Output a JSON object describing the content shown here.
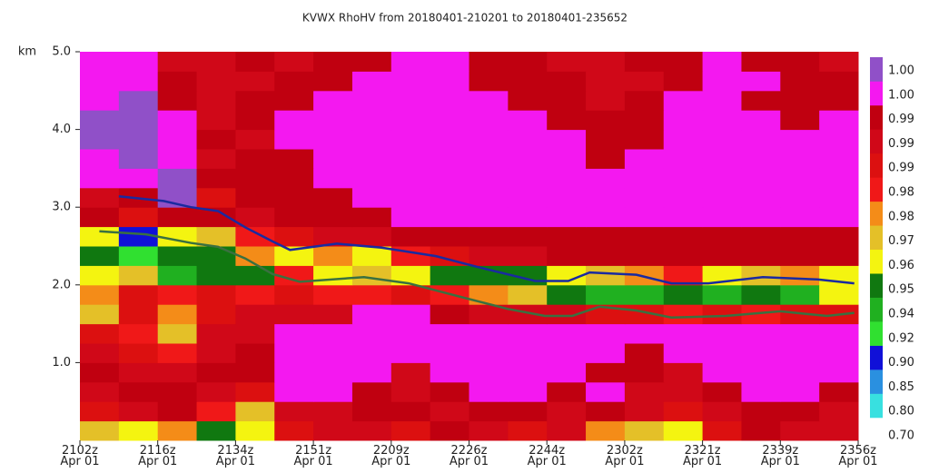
{
  "chart_data": {
    "type": "heatmap",
    "title": "KVWX RhoHV from 20180401-210201 to 20180401-235652",
    "y_unit": "km",
    "xlim": [
      0,
      40
    ],
    "ylim": [
      0,
      5
    ],
    "xticks": [
      {
        "value": 0,
        "label": "2102z\nApr 01"
      },
      {
        "value": 4,
        "label": "2116z\nApr 01"
      },
      {
        "value": 8,
        "label": "2134z\nApr 01"
      },
      {
        "value": 12,
        "label": "2151z\nApr 01"
      },
      {
        "value": 16,
        "label": "2209z\nApr 01"
      },
      {
        "value": 20,
        "label": "2226z\nApr 01"
      },
      {
        "value": 24,
        "label": "2244z\nApr 01"
      },
      {
        "value": 28,
        "label": "2302z\nApr 01"
      },
      {
        "value": 32,
        "label": "2321z\nApr 01"
      },
      {
        "value": 36,
        "label": "2339z\nApr 01"
      },
      {
        "value": 40,
        "label": "2356z\nApr 01"
      }
    ],
    "yticks": [
      {
        "value": 1,
        "label": "1.0"
      },
      {
        "value": 2,
        "label": "2.0"
      },
      {
        "value": 3,
        "label": "3.0"
      },
      {
        "value": 4,
        "label": "4.0"
      },
      {
        "value": 5,
        "label": "5.0"
      }
    ],
    "bins_x": [
      0,
      2,
      4,
      6,
      8,
      10,
      12,
      14,
      16,
      18,
      20,
      22,
      24,
      26,
      28,
      30,
      32,
      34,
      36,
      38,
      40
    ],
    "bins_y": [
      0,
      0.25,
      0.5,
      0.75,
      1,
      1.25,
      1.5,
      1.75,
      2,
      2.25,
      2.5,
      2.75,
      3,
      3.25,
      3.5,
      3.75,
      4,
      4.25,
      4.5,
      4.75,
      5
    ],
    "z": [
      [
        0.965,
        0.955,
        0.973,
        0.945,
        0.955,
        0.986,
        0.99,
        0.99,
        0.986,
        0.993,
        0.99,
        0.986,
        0.99,
        0.973,
        0.965,
        0.955,
        0.986,
        0.993,
        0.99,
        0.99
      ],
      [
        0.986,
        0.99,
        0.993,
        0.98,
        0.965,
        0.99,
        0.99,
        0.993,
        0.993,
        0.99,
        0.993,
        0.993,
        0.99,
        0.993,
        0.99,
        0.986,
        0.99,
        0.993,
        0.993,
        0.99
      ],
      [
        0.99,
        0.993,
        0.993,
        0.99,
        0.986,
        0.995,
        0.995,
        0.993,
        0.99,
        0.993,
        0.995,
        0.995,
        0.993,
        0.995,
        0.99,
        0.99,
        0.993,
        0.995,
        0.995,
        0.993
      ],
      [
        0.993,
        0.99,
        0.99,
        0.993,
        0.993,
        0.995,
        0.995,
        0.995,
        0.99,
        0.995,
        0.995,
        0.995,
        0.995,
        0.993,
        0.993,
        0.99,
        0.995,
        0.995,
        0.995,
        0.995
      ],
      [
        0.99,
        0.986,
        0.98,
        0.99,
        0.993,
        0.995,
        0.995,
        0.995,
        0.995,
        0.995,
        0.995,
        0.995,
        0.995,
        0.995,
        0.993,
        0.995,
        0.995,
        0.995,
        0.995,
        0.995
      ],
      [
        0.986,
        0.98,
        0.965,
        0.99,
        0.99,
        0.995,
        0.995,
        0.995,
        0.995,
        0.995,
        0.995,
        0.995,
        0.995,
        0.995,
        0.995,
        0.995,
        0.995,
        0.995,
        0.995,
        0.995
      ],
      [
        0.965,
        0.986,
        0.973,
        0.986,
        0.99,
        0.99,
        0.99,
        0.995,
        0.995,
        0.993,
        0.99,
        0.99,
        0.99,
        0.986,
        0.986,
        0.98,
        0.986,
        0.98,
        0.986,
        0.986
      ],
      [
        0.973,
        0.986,
        0.98,
        0.986,
        0.98,
        0.986,
        0.98,
        0.98,
        0.986,
        0.98,
        0.973,
        0.965,
        0.945,
        0.93,
        0.93,
        0.945,
        0.93,
        0.945,
        0.93,
        0.955
      ],
      [
        0.955,
        0.965,
        0.93,
        0.945,
        0.945,
        0.98,
        0.955,
        0.965,
        0.955,
        0.945,
        0.945,
        0.945,
        0.955,
        0.965,
        0.973,
        0.98,
        0.955,
        0.965,
        0.973,
        0.955
      ],
      [
        0.945,
        0.91,
        0.945,
        0.945,
        0.973,
        0.955,
        0.973,
        0.955,
        0.98,
        0.986,
        0.99,
        0.99,
        0.993,
        0.993,
        0.993,
        0.993,
        0.993,
        0.993,
        0.993,
        0.993
      ],
      [
        0.955,
        0.87,
        0.955,
        0.965,
        0.98,
        0.986,
        0.99,
        0.99,
        0.993,
        0.993,
        0.993,
        0.993,
        0.993,
        0.993,
        0.993,
        0.993,
        0.993,
        0.993,
        0.993,
        0.993
      ],
      [
        0.993,
        0.986,
        0.993,
        0.993,
        0.99,
        0.993,
        0.993,
        0.993,
        0.995,
        0.995,
        0.995,
        0.995,
        0.995,
        0.995,
        0.995,
        0.995,
        0.995,
        0.995,
        0.995,
        0.995
      ],
      [
        0.99,
        0.993,
        0.998,
        0.986,
        0.993,
        0.993,
        0.993,
        0.995,
        0.995,
        0.995,
        0.995,
        0.995,
        0.995,
        0.995,
        0.995,
        0.995,
        0.995,
        0.995,
        0.995,
        0.995
      ],
      [
        0.995,
        0.995,
        0.998,
        0.993,
        0.993,
        0.993,
        0.995,
        0.995,
        0.995,
        0.995,
        0.995,
        0.995,
        0.995,
        0.995,
        0.995,
        0.995,
        0.995,
        0.995,
        0.995,
        0.995
      ],
      [
        0.995,
        0.998,
        0.995,
        0.99,
        0.993,
        0.993,
        0.995,
        0.995,
        0.995,
        0.995,
        0.995,
        0.995,
        0.995,
        0.993,
        0.995,
        0.995,
        0.995,
        0.995,
        0.995,
        0.995
      ],
      [
        0.998,
        0.998,
        0.995,
        0.993,
        0.99,
        0.995,
        0.995,
        0.995,
        0.995,
        0.995,
        0.995,
        0.995,
        0.995,
        0.993,
        0.993,
        0.995,
        0.995,
        0.995,
        0.995,
        0.995
      ],
      [
        0.998,
        0.998,
        0.995,
        0.99,
        0.993,
        0.995,
        0.995,
        0.995,
        0.995,
        0.995,
        0.995,
        0.995,
        0.993,
        0.993,
        0.993,
        0.995,
        0.995,
        0.995,
        0.993,
        0.995
      ],
      [
        0.995,
        0.998,
        0.993,
        0.99,
        0.993,
        0.993,
        0.995,
        0.995,
        0.995,
        0.995,
        0.995,
        0.993,
        0.993,
        0.99,
        0.993,
        0.995,
        0.995,
        0.993,
        0.993,
        0.993
      ],
      [
        0.995,
        0.995,
        0.993,
        0.99,
        0.99,
        0.993,
        0.993,
        0.995,
        0.995,
        0.995,
        0.993,
        0.993,
        0.993,
        0.99,
        0.99,
        0.993,
        0.995,
        0.995,
        0.993,
        0.993
      ],
      [
        0.995,
        0.995,
        0.99,
        0.99,
        0.993,
        0.99,
        0.993,
        0.993,
        0.995,
        0.995,
        0.993,
        0.993,
        0.99,
        0.99,
        0.993,
        0.993,
        0.995,
        0.993,
        0.993,
        0.99
      ]
    ],
    "colorbar": {
      "ticks": [
        {
          "value": 0.7,
          "label": "0.70"
        },
        {
          "value": 0.8,
          "label": "0.80"
        },
        {
          "value": 0.85,
          "label": "0.85"
        },
        {
          "value": 0.9,
          "label": "0.90"
        },
        {
          "value": 0.92,
          "label": "0.92"
        },
        {
          "value": 0.94,
          "label": "0.94"
        },
        {
          "value": 0.95,
          "label": "0.95"
        },
        {
          "value": 0.96,
          "label": "0.96"
        },
        {
          "value": 0.97,
          "label": "0.97"
        },
        {
          "value": 0.976,
          "label": "0.98"
        },
        {
          "value": 0.984,
          "label": "0.98"
        },
        {
          "value": 0.988,
          "label": "0.99"
        },
        {
          "value": 0.992,
          "label": "0.99"
        },
        {
          "value": 0.994,
          "label": "0.99"
        },
        {
          "value": 0.996,
          "label": "1.00"
        },
        {
          "value": 1.0,
          "label": "1.00"
        }
      ],
      "colors": [
        "#38e0e0",
        "#2a90e0",
        "#1010d8",
        "#30e030",
        "#20b020",
        "#107810",
        "#f4f410",
        "#e4c028",
        "#f48c18",
        "#f01818",
        "#dc1010",
        "#d00818",
        "#c00010",
        "#f418f0",
        "#9050c8"
      ]
    },
    "series": [
      {
        "color": "#1a2aa0",
        "x": [
          2,
          4.3,
          5.7,
          7.1,
          8.5,
          9.9,
          10.8,
          13.2,
          15.5,
          18.3,
          20.6,
          23.4,
          25.1,
          26.2,
          28.6,
          30.4,
          32.3,
          35.1,
          37.9,
          39.8
        ],
        "values": [
          3.14,
          3.08,
          3.0,
          2.95,
          2.74,
          2.56,
          2.45,
          2.53,
          2.48,
          2.37,
          2.22,
          2.05,
          2.05,
          2.16,
          2.13,
          2.02,
          2.02,
          2.1,
          2.07,
          2.02
        ]
      },
      {
        "color": "#3a7040",
        "x": [
          1,
          3.4,
          5.7,
          7.1,
          8.5,
          9.9,
          11.3,
          14.6,
          16.9,
          19.2,
          22,
          23.9,
          25.3,
          26.7,
          28.6,
          30.4,
          33.2,
          36,
          38.4,
          39.8
        ],
        "values": [
          2.69,
          2.65,
          2.54,
          2.49,
          2.34,
          2.14,
          2.04,
          2.1,
          2.02,
          1.87,
          1.69,
          1.6,
          1.6,
          1.72,
          1.67,
          1.58,
          1.6,
          1.66,
          1.6,
          1.64
        ]
      }
    ]
  }
}
